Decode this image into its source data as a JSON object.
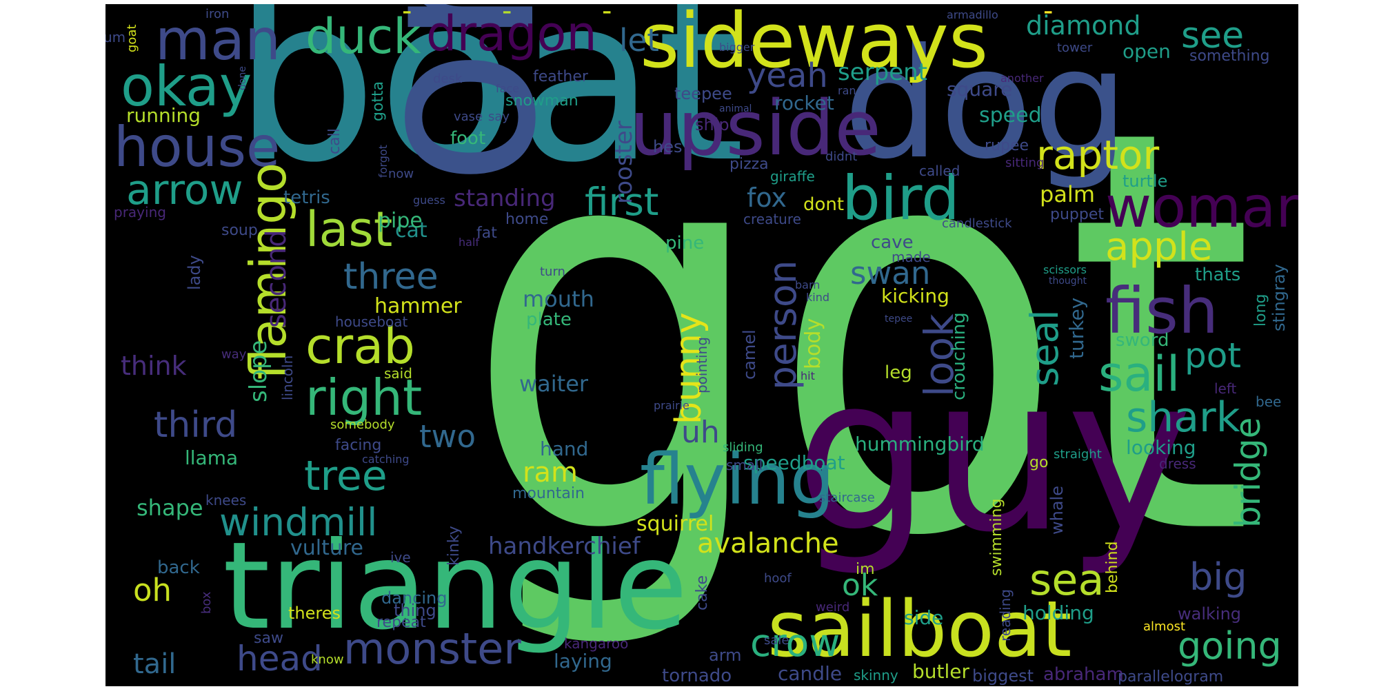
{
  "colors": {
    "background": "#000000",
    "page": "#ffffff",
    "palette": [
      "#440154",
      "#482878",
      "#3e4a89",
      "#31688e",
      "#26828e",
      "#1f9e89",
      "#35b779",
      "#6ece58",
      "#b5de2b",
      "#fde725"
    ]
  },
  "words": [
    {
      "text": "got",
      "color": "#5ec962"
    },
    {
      "text": "boat",
      "color": "#26828e"
    },
    {
      "text": "one",
      "color": "#3b528b"
    },
    {
      "text": "guy",
      "color": "#440154"
    },
    {
      "text": "dog",
      "color": "#3b528b"
    },
    {
      "text": "triangle",
      "color": "#35b779"
    },
    {
      "text": "sideways",
      "color": "#d2e21b"
    },
    {
      "text": "sailboat",
      "color": "#c8e020"
    },
    {
      "text": "upside",
      "color": "#482878"
    },
    {
      "text": "flying",
      "color": "#26828e"
    },
    {
      "text": "fish",
      "color": "#472d7b"
    },
    {
      "text": "man",
      "color": "#3e4a89"
    },
    {
      "text": "okay",
      "color": "#1f9e89"
    },
    {
      "text": "house",
      "color": "#3e4a89"
    },
    {
      "text": "dragon",
      "color": "#440154"
    },
    {
      "text": "duck",
      "color": "#35b779"
    },
    {
      "text": "bird",
      "color": "#1f9e89"
    },
    {
      "text": "woman",
      "color": "#440154"
    },
    {
      "text": "arrow",
      "color": "#1f9e89"
    },
    {
      "text": "flamingo",
      "color": "#b5de2b"
    },
    {
      "text": "last",
      "color": "#a0da39"
    },
    {
      "text": "crab",
      "color": "#b5de2b"
    },
    {
      "text": "right",
      "color": "#35b779"
    },
    {
      "text": "monster",
      "color": "#3e4a89"
    },
    {
      "text": "windmill",
      "color": "#21918c"
    },
    {
      "text": "tree",
      "color": "#1f9e89"
    },
    {
      "text": "raptor",
      "color": "#d2e21b"
    },
    {
      "text": "shark",
      "color": "#1f9e89"
    },
    {
      "text": "sail",
      "color": "#2ab07f"
    },
    {
      "text": "sea",
      "color": "#b5de2b"
    },
    {
      "text": "apple",
      "color": "#d2e21b"
    },
    {
      "text": "crow",
      "color": "#2ab07f"
    },
    {
      "text": "going",
      "color": "#35b779"
    },
    {
      "text": "bridge",
      "color": "#35b779"
    },
    {
      "text": "big",
      "color": "#3e4a89"
    },
    {
      "text": "pot",
      "color": "#1f9e89"
    },
    {
      "text": "seal",
      "color": "#1f9e89"
    },
    {
      "text": "look",
      "color": "#3e4a89"
    },
    {
      "text": "person",
      "color": "#3e4a89"
    },
    {
      "text": "bunny",
      "color": "#e5e419"
    },
    {
      "text": "three",
      "color": "#31688e"
    },
    {
      "text": "third",
      "color": "#3e4a89"
    },
    {
      "text": "second",
      "color": "#482878"
    },
    {
      "text": "first",
      "color": "#1f9e89"
    },
    {
      "text": "head",
      "color": "#3e4a89"
    },
    {
      "text": "tail",
      "color": "#31688e"
    },
    {
      "text": "avalanche",
      "color": "#d2e21b"
    },
    {
      "text": "ok",
      "color": "#35b779"
    },
    {
      "text": "swan",
      "color": "#31688e"
    },
    {
      "text": "see",
      "color": "#1f9e89"
    },
    {
      "text": "diamond",
      "color": "#1f9e89"
    },
    {
      "text": "yeah",
      "color": "#3e4a89"
    },
    {
      "text": "serpent",
      "color": "#1f9e89"
    },
    {
      "text": "let",
      "color": "#31688e"
    },
    {
      "text": "fox",
      "color": "#31688e"
    },
    {
      "text": "two",
      "color": "#31688e"
    },
    {
      "text": "oh",
      "color": "#c8e020"
    },
    {
      "text": "uh",
      "color": "#3e4a89"
    },
    {
      "text": "ram",
      "color": "#d2e21b"
    },
    {
      "text": "rooster",
      "color": "#3e4a89"
    },
    {
      "text": "standing",
      "color": "#482878"
    },
    {
      "text": "palm",
      "color": "#d2e21b"
    },
    {
      "text": "rocket",
      "color": "#31688e"
    },
    {
      "text": "square",
      "color": "#3e4a89"
    },
    {
      "text": "speed",
      "color": "#1f9e89"
    },
    {
      "text": "open",
      "color": "#1f9e89"
    },
    {
      "text": "something",
      "color": "#3e4a89"
    },
    {
      "text": "handkerchief",
      "color": "#3e4a89"
    },
    {
      "text": "vulture",
      "color": "#31688e"
    },
    {
      "text": "hummingbird",
      "color": "#2ab07f"
    },
    {
      "text": "speedboat",
      "color": "#1f9e89"
    },
    {
      "text": "looking",
      "color": "#1f9e89"
    },
    {
      "text": "laying",
      "color": "#31688e"
    },
    {
      "text": "tornado",
      "color": "#3e4a89"
    },
    {
      "text": "candle",
      "color": "#3e4a89"
    },
    {
      "text": "biggest",
      "color": "#3e4a89"
    },
    {
      "text": "abraham",
      "color": "#482878"
    },
    {
      "text": "parallelogram",
      "color": "#3e4a89"
    },
    {
      "text": "butler",
      "color": "#b5de2b"
    },
    {
      "text": "holding",
      "color": "#1f9e89"
    },
    {
      "text": "walking",
      "color": "#472d7b"
    },
    {
      "text": "almost",
      "color": "#fde725"
    },
    {
      "text": "side",
      "color": "#1f9e89"
    },
    {
      "text": "dancing",
      "color": "#31688e"
    },
    {
      "text": "thing",
      "color": "#3e4a89"
    },
    {
      "text": "repeat",
      "color": "#3e4a89"
    },
    {
      "text": "theres",
      "color": "#d2e21b"
    },
    {
      "text": "back",
      "color": "#31688e"
    },
    {
      "text": "shape",
      "color": "#35b779"
    },
    {
      "text": "llama",
      "color": "#35b779"
    },
    {
      "text": "think",
      "color": "#472d7b"
    },
    {
      "text": "slope",
      "color": "#35b779"
    },
    {
      "text": "hammer",
      "color": "#d2e21b"
    },
    {
      "text": "mouth",
      "color": "#31688e"
    },
    {
      "text": "plate",
      "color": "#35b779"
    },
    {
      "text": "waiter",
      "color": "#31688e"
    },
    {
      "text": "hand",
      "color": "#31688e"
    },
    {
      "text": "mountain",
      "color": "#31688e"
    },
    {
      "text": "squirrel",
      "color": "#d2e21b"
    },
    {
      "text": "cat",
      "color": "#21918c"
    },
    {
      "text": "pipe",
      "color": "#35b779"
    },
    {
      "text": "tetris",
      "color": "#31688e"
    },
    {
      "text": "home",
      "color": "#3e4a89"
    },
    {
      "text": "fat",
      "color": "#3e4a89"
    },
    {
      "text": "pine",
      "color": "#35b779"
    },
    {
      "text": "cave",
      "color": "#3e4a89"
    },
    {
      "text": "made",
      "color": "#3e4a89"
    },
    {
      "text": "kicking",
      "color": "#d2e21b"
    },
    {
      "text": "body",
      "color": "#b5de2b"
    },
    {
      "text": "camel",
      "color": "#3e4a89"
    },
    {
      "text": "pointing",
      "color": "#3e4a89"
    },
    {
      "text": "crouching",
      "color": "#2ab07f"
    },
    {
      "text": "leg",
      "color": "#b5de2b"
    },
    {
      "text": "turkey",
      "color": "#31688e"
    },
    {
      "text": "sword",
      "color": "#35b779"
    },
    {
      "text": "stingray",
      "color": "#31688e"
    },
    {
      "text": "long",
      "color": "#1f9e89"
    },
    {
      "text": "thats",
      "color": "#1f9e89"
    },
    {
      "text": "left",
      "color": "#482878"
    },
    {
      "text": "bee",
      "color": "#31688e"
    },
    {
      "text": "straight",
      "color": "#1f9e89"
    },
    {
      "text": "dress",
      "color": "#482878"
    },
    {
      "text": "behind",
      "color": "#d2e21b"
    },
    {
      "text": "whale",
      "color": "#3e4a89"
    },
    {
      "text": "swimming",
      "color": "#b5de2b"
    },
    {
      "text": "reading",
      "color": "#3e4a89"
    },
    {
      "text": "go",
      "color": "#b5de2b"
    },
    {
      "text": "im",
      "color": "#b5de2b"
    },
    {
      "text": "staircase",
      "color": "#31688e"
    },
    {
      "text": "sliding",
      "color": "#35b779"
    },
    {
      "text": "small",
      "color": "#3e4a89"
    },
    {
      "text": "hoof",
      "color": "#3e4a89"
    },
    {
      "text": "weird",
      "color": "#482878"
    },
    {
      "text": "sale",
      "color": "#3e4a89"
    },
    {
      "text": "skinny",
      "color": "#1f9e89"
    },
    {
      "text": "arm",
      "color": "#3e4a89"
    },
    {
      "text": "cake",
      "color": "#3e4a89"
    },
    {
      "text": "kangaroo",
      "color": "#482878"
    },
    {
      "text": "kinky",
      "color": "#3e4a89"
    },
    {
      "text": "ive",
      "color": "#3e4a89"
    },
    {
      "text": "saw",
      "color": "#3e4a89"
    },
    {
      "text": "know",
      "color": "#b5de2b"
    },
    {
      "text": "box",
      "color": "#472d7b"
    },
    {
      "text": "knees",
      "color": "#3e4a89"
    },
    {
      "text": "catching",
      "color": "#3e4a89"
    },
    {
      "text": "facing",
      "color": "#3e4a89"
    },
    {
      "text": "somebody",
      "color": "#b5de2b"
    },
    {
      "text": "said",
      "color": "#b5de2b"
    },
    {
      "text": "lincoln",
      "color": "#3e4a89"
    },
    {
      "text": "way",
      "color": "#472d7b"
    },
    {
      "text": "houseboat",
      "color": "#3e4a89"
    },
    {
      "text": "lady",
      "color": "#3e4a89"
    },
    {
      "text": "praying",
      "color": "#482878"
    },
    {
      "text": "soup",
      "color": "#3e4a89"
    },
    {
      "text": "guess",
      "color": "#3e4a89"
    },
    {
      "text": "now",
      "color": "#3e4a89"
    },
    {
      "text": "forgot",
      "color": "#3e4a89"
    },
    {
      "text": "half",
      "color": "#472d7b"
    },
    {
      "text": "call",
      "color": "#3e4a89"
    },
    {
      "text": "gotta",
      "color": "#1f9e89"
    },
    {
      "text": "running",
      "color": "#b5de2b"
    },
    {
      "text": "foot",
      "color": "#35b779"
    },
    {
      "text": "snowman",
      "color": "#1f9e89"
    },
    {
      "text": "face",
      "color": "#3e4a89"
    },
    {
      "text": "vase",
      "color": "#3e4a89"
    },
    {
      "text": "say",
      "color": "#3e4a89"
    },
    {
      "text": "feather",
      "color": "#3e4a89"
    },
    {
      "text": "desk",
      "color": "#3e4a89"
    },
    {
      "text": "teepee",
      "color": "#3e4a89"
    },
    {
      "text": "iron",
      "color": "#3e4a89"
    },
    {
      "text": "um",
      "color": "#3e4a89"
    },
    {
      "text": "goat",
      "color": "#d2e21b"
    },
    {
      "text": "done",
      "color": "#3e4a89"
    },
    {
      "text": "armadillo",
      "color": "#3e4a89"
    },
    {
      "text": "bigger",
      "color": "#3e4a89"
    },
    {
      "text": "tower",
      "color": "#3e4a89"
    },
    {
      "text": "another",
      "color": "#482878"
    },
    {
      "text": "ran",
      "color": "#3e4a89"
    },
    {
      "text": "animal",
      "color": "#3e4a89"
    },
    {
      "text": "ship",
      "color": "#482878"
    },
    {
      "text": "hes",
      "color": "#3e4a89"
    },
    {
      "text": "pizza",
      "color": "#3e4a89"
    },
    {
      "text": "giraffe",
      "color": "#1f9e89"
    },
    {
      "text": "didnt",
      "color": "#3e4a89"
    },
    {
      "text": "called",
      "color": "#3e4a89"
    },
    {
      "text": "sitting",
      "color": "#482878"
    },
    {
      "text": "rupee",
      "color": "#3e4a89"
    },
    {
      "text": "turtle",
      "color": "#1f9e89"
    },
    {
      "text": "puppet",
      "color": "#3e4a89"
    },
    {
      "text": "candlestick",
      "color": "#3e4a89"
    },
    {
      "text": "dont",
      "color": "#d2e21b"
    },
    {
      "text": "creature",
      "color": "#3e4a89"
    },
    {
      "text": "turn",
      "color": "#3e4a89"
    },
    {
      "text": "barn",
      "color": "#3e4a89"
    },
    {
      "text": "kind",
      "color": "#3e4a89"
    },
    {
      "text": "scissors",
      "color": "#1f9e89"
    },
    {
      "text": "thought",
      "color": "#3e4a89"
    },
    {
      "text": "tepee",
      "color": "#3e4a89"
    },
    {
      "text": "hit",
      "color": "#482878"
    },
    {
      "text": "prairie",
      "color": "#3e4a89"
    },
    {
      "text": "-",
      "color": "#d2e21b"
    },
    {
      "text": "-",
      "color": "#b5de2b"
    },
    {
      "text": "-",
      "color": "#d2e21b"
    },
    {
      "text": "-",
      "color": "#fde725"
    }
  ]
}
